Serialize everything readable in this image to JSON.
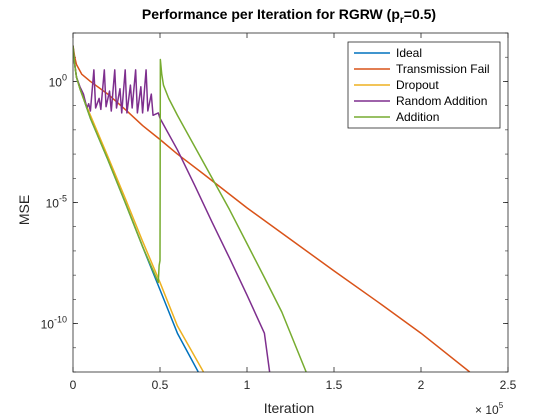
{
  "chart_data": {
    "type": "line",
    "title": "Performance per Iteration for RGRW (p",
    "title_sub": "r",
    "title_suffix": "=0.5)",
    "xlabel": "Iteration",
    "ylabel": "MSE",
    "x_multiplier_base": "× 10",
    "x_multiplier_exp": "5",
    "xlim": [
      0,
      250000
    ],
    "ylim": [
      1e-12,
      100.0
    ],
    "y_scale": "log",
    "x_ticks": [
      0,
      50000,
      100000,
      150000,
      200000,
      250000
    ],
    "x_tick_labels": [
      "0",
      "0.5",
      "1",
      "1.5",
      "2",
      "2.5"
    ],
    "y_ticks": [
      1,
      1e-05,
      1e-10
    ],
    "y_tick_base": "10",
    "y_tick_exps": [
      "0",
      "-5",
      "-10"
    ],
    "legend_position": "top-right",
    "series": [
      {
        "name": "Ideal",
        "color": "#0072BD",
        "points": [
          [
            0,
            30
          ],
          [
            1000,
            5
          ],
          [
            2000,
            1.5
          ],
          [
            4000,
            0.5
          ],
          [
            6000,
            0.2
          ],
          [
            10000,
            0.03
          ],
          [
            20000,
            0.0006
          ],
          [
            30000,
            1e-05
          ],
          [
            40000,
            1.5e-07
          ],
          [
            50000,
            2.5e-09
          ],
          [
            60000,
            4e-11
          ],
          [
            72000,
            1e-12
          ]
        ]
      },
      {
        "name": "Transmission Fail",
        "color": "#D95319",
        "points": [
          [
            0,
            30
          ],
          [
            1000,
            10
          ],
          [
            2000,
            5
          ],
          [
            5000,
            2
          ],
          [
            10000,
            1
          ],
          [
            20000,
            0.3
          ],
          [
            30000,
            0.07
          ],
          [
            40000,
            0.015
          ],
          [
            50000,
            0.004
          ],
          [
            60000,
            0.001
          ],
          [
            75000,
            0.00015
          ],
          [
            100000,
            6e-06
          ],
          [
            125000,
            3e-07
          ],
          [
            150000,
            1.5e-08
          ],
          [
            175000,
            8e-10
          ],
          [
            200000,
            4e-11
          ],
          [
            228000,
            1e-12
          ]
        ]
      },
      {
        "name": "Dropout",
        "color": "#EDB120",
        "points": [
          [
            0,
            30
          ],
          [
            1000,
            5
          ],
          [
            2000,
            1.5
          ],
          [
            4000,
            0.5
          ],
          [
            6000,
            0.2
          ],
          [
            10000,
            0.04
          ],
          [
            20000,
            0.0008
          ],
          [
            30000,
            1.5e-05
          ],
          [
            40000,
            2.5e-07
          ],
          [
            50000,
            5e-09
          ],
          [
            60000,
            8e-11
          ],
          [
            75000,
            1e-12
          ]
        ]
      },
      {
        "name": "Random Addition",
        "color": "#7E2F8E",
        "points": [
          [
            0,
            30
          ],
          [
            1000,
            5
          ],
          [
            2000,
            1.5
          ],
          [
            4000,
            0.6
          ],
          [
            6000,
            0.3
          ],
          [
            8000,
            0.08
          ],
          [
            9000,
            0.12
          ],
          [
            10000,
            0.06
          ],
          [
            12000,
            3
          ],
          [
            13000,
            0.08
          ],
          [
            15000,
            0.2
          ],
          [
            16000,
            0.07
          ],
          [
            18000,
            3
          ],
          [
            19000,
            0.09
          ],
          [
            21000,
            0.4
          ],
          [
            22000,
            0.06
          ],
          [
            24000,
            3
          ],
          [
            25000,
            0.08
          ],
          [
            27000,
            0.5
          ],
          [
            28000,
            0.05
          ],
          [
            30000,
            3
          ],
          [
            31000,
            0.05
          ],
          [
            33000,
            0.7
          ],
          [
            34000,
            0.08
          ],
          [
            36000,
            3
          ],
          [
            37000,
            0.05
          ],
          [
            39000,
            0.6
          ],
          [
            40000,
            0.05
          ],
          [
            42000,
            3
          ],
          [
            43000,
            0.06
          ],
          [
            45000,
            0.3
          ],
          [
            46000,
            0.04
          ],
          [
            49000,
            0.05
          ],
          [
            50000,
            0.03
          ],
          [
            60000,
            0.0015
          ],
          [
            70000,
            5e-05
          ],
          [
            80000,
            1.5e-06
          ],
          [
            90000,
            5e-08
          ],
          [
            100000,
            1.5e-09
          ],
          [
            110000,
            4e-11
          ],
          [
            113000,
            1e-12
          ]
        ]
      },
      {
        "name": "Addition",
        "color": "#77AC30",
        "points": [
          [
            0,
            30
          ],
          [
            1000,
            5
          ],
          [
            2000,
            1.5
          ],
          [
            4000,
            0.5
          ],
          [
            6000,
            0.2
          ],
          [
            10000,
            0.03
          ],
          [
            20000,
            0.0006
          ],
          [
            30000,
            1e-05
          ],
          [
            40000,
            1.5e-07
          ],
          [
            49000,
            5e-09
          ],
          [
            49500,
            2.5e-08
          ],
          [
            50000,
            4e-08
          ],
          [
            50100,
            0.0003
          ],
          [
            50200,
            8
          ],
          [
            51000,
            2
          ],
          [
            52000,
            0.7
          ],
          [
            55000,
            0.2
          ],
          [
            60000,
            0.04
          ],
          [
            70000,
            0.002
          ],
          [
            80000,
            0.0001
          ],
          [
            90000,
            5e-06
          ],
          [
            100000,
            2e-07
          ],
          [
            110000,
            8e-09
          ],
          [
            120000,
            3e-10
          ],
          [
            134000,
            1e-12
          ]
        ]
      }
    ]
  }
}
